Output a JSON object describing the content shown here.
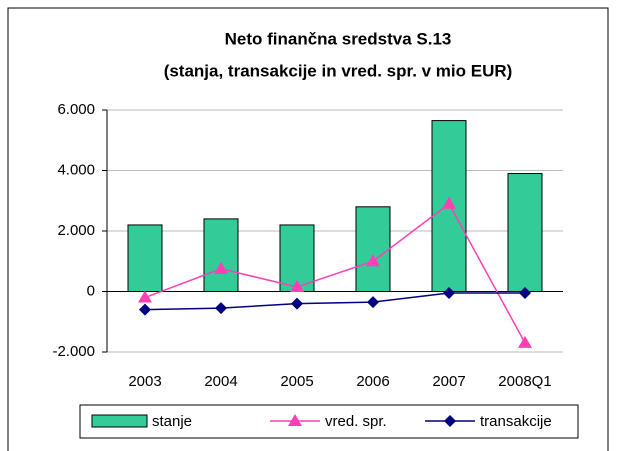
{
  "chart_data": {
    "type": "combo",
    "title": [
      "Neto finančna sredstva S.13",
      "(stanja, transakcije in vred. spr. v mio EUR)"
    ],
    "categories": [
      "2003",
      "2004",
      "2005",
      "2006",
      "2007",
      "2008Q1"
    ],
    "series": [
      {
        "name": "stanje",
        "type": "bar",
        "color": "#33cc99",
        "values": [
          2200,
          2400,
          2200,
          2800,
          5650,
          3900
        ]
      },
      {
        "name": "vred. spr.",
        "type": "line",
        "marker": "triangle",
        "color": "#ff3fb4",
        "values": [
          -200,
          750,
          150,
          1000,
          2900,
          -1700
        ]
      },
      {
        "name": "transakcije",
        "type": "line",
        "marker": "diamond",
        "color": "#000080",
        "values": [
          -600,
          -550,
          -400,
          -350,
          -50,
          -50
        ]
      }
    ],
    "ylim": [
      -2000,
      6000
    ],
    "yticks": [
      {
        "value": 6000,
        "label": "6.000"
      },
      {
        "value": 4000,
        "label": "4.000"
      },
      {
        "value": 2000,
        "label": "2.000"
      },
      0,
      {
        "value": -2000,
        "label": "-2.000"
      }
    ],
    "grid": true,
    "legend": "bottom"
  }
}
